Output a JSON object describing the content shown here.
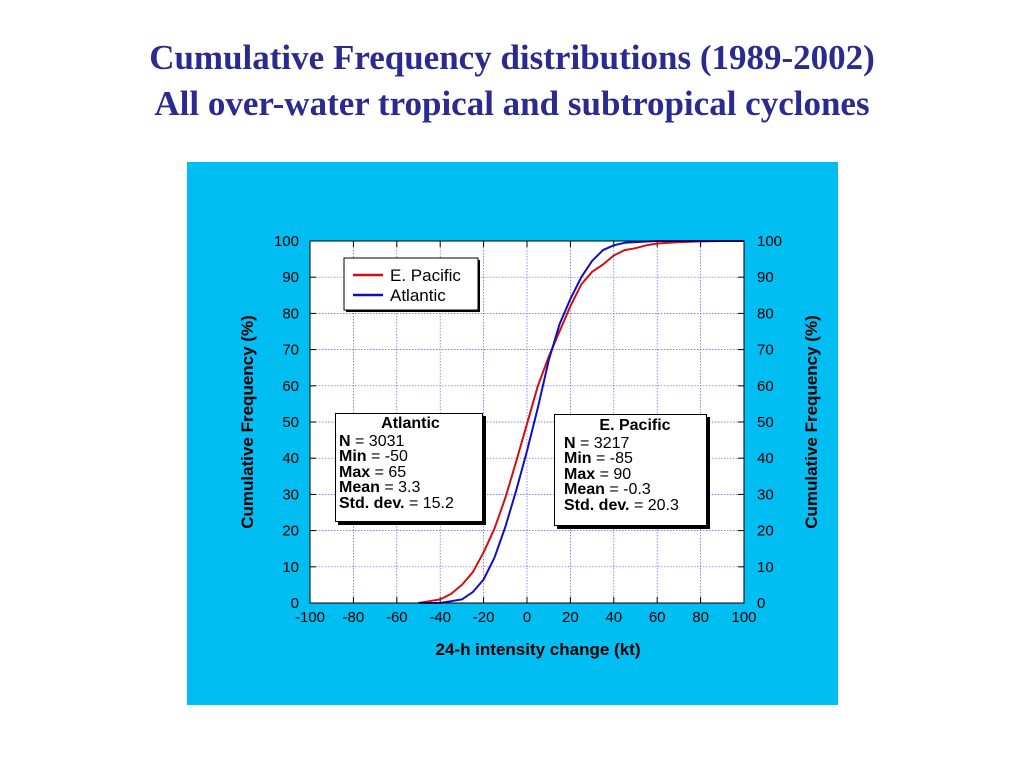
{
  "slide": {
    "title_line1": "Cumulative Frequency distributions (1989-2002)",
    "title_line2": "All over-water tropical and subtropical cyclones",
    "panel_color": "#00bdf2",
    "title_color": "#2b2b8f"
  },
  "chart_data": {
    "type": "line",
    "xlabel": "24-h intensity change (kt)",
    "ylabel": "Cumulative Frequency (%)",
    "ylabel_right": "Cumulative Frequency (%)",
    "xlim": [
      -100,
      100
    ],
    "ylim": [
      0,
      100
    ],
    "xticks": [
      -100,
      -80,
      -60,
      -40,
      -20,
      0,
      20,
      40,
      60,
      80,
      100
    ],
    "yticks": [
      0,
      10,
      20,
      30,
      40,
      50,
      60,
      70,
      80,
      90,
      100
    ],
    "grid": true,
    "legend_position": "top-left",
    "series": [
      {
        "name": "E. Pacific",
        "color": "#d01010",
        "x": [
          -50,
          -45,
          -40,
          -35,
          -30,
          -25,
          -20,
          -15,
          -10,
          -5,
          0,
          5,
          10,
          15,
          20,
          25,
          30,
          35,
          40,
          45,
          50,
          55,
          60,
          70,
          80,
          90,
          100
        ],
        "y": [
          0,
          0.5,
          1,
          2.5,
          5,
          8.5,
          14,
          20.5,
          29,
          39,
          49.5,
          60,
          68,
          75,
          82,
          88,
          91.5,
          93.5,
          96,
          97.5,
          98,
          98.8,
          99.3,
          99.7,
          99.9,
          100,
          100
        ]
      },
      {
        "name": "Atlantic",
        "color": "#1010c0",
        "x": [
          -50,
          -40,
          -35,
          -30,
          -25,
          -20,
          -15,
          -10,
          -5,
          0,
          5,
          10,
          15,
          20,
          25,
          30,
          35,
          40,
          45,
          50,
          60,
          65,
          70,
          80,
          100
        ],
        "y": [
          0,
          0,
          0.5,
          1,
          3,
          6.5,
          12.5,
          21,
          31,
          42,
          54,
          67,
          77,
          84,
          90,
          94.5,
          97.5,
          98.8,
          99.5,
          99.7,
          100,
          100,
          100,
          100,
          100
        ]
      }
    ],
    "stats_boxes": [
      {
        "title": "Atlantic",
        "rows": [
          {
            "label": "N",
            "value": "= 3031"
          },
          {
            "label": "Min",
            "value": "= -50"
          },
          {
            "label": "Max",
            "value": "= 65"
          },
          {
            "label": "Mean",
            "value": "= 3.3"
          },
          {
            "label": "Std. dev.",
            "value": " = 15.2"
          }
        ]
      },
      {
        "title": "E. Pacific",
        "rows": [
          {
            "label": "N",
            "value": "= 3217"
          },
          {
            "label": "Min",
            "value": "= -85"
          },
          {
            "label": "Max",
            "value": "= 90"
          },
          {
            "label": "Mean",
            "value": "= -0.3"
          },
          {
            "label": "Std. dev.",
            "value": "= 20.3"
          }
        ]
      }
    ]
  }
}
